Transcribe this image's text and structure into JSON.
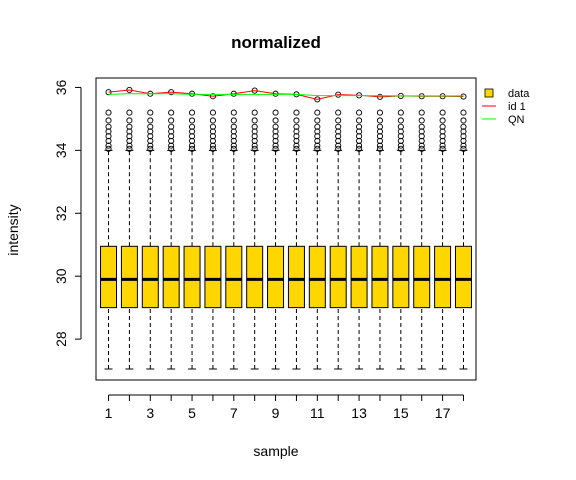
{
  "chart_data": {
    "type": "boxplot",
    "title": "normalized",
    "xlabel": "sample",
    "ylabel": "intensity",
    "ylim": [
      26.7,
      36.3
    ],
    "xlim": [
      0.4,
      18.6
    ],
    "y_ticks": [
      28,
      30,
      32,
      34,
      36
    ],
    "x_ticks": [
      1,
      3,
      5,
      7,
      9,
      11,
      13,
      15,
      17
    ],
    "grid": false,
    "legend_position": "top-right",
    "box_fill": "#FFD700",
    "samples": [
      1,
      2,
      3,
      4,
      5,
      6,
      7,
      8,
      9,
      10,
      11,
      12,
      13,
      14,
      15,
      16,
      17,
      18
    ],
    "boxes": {
      "min": 27.05,
      "q1": 29.0,
      "median": 29.9,
      "q3": 30.95,
      "whisker_high": 34.0,
      "outliers": [
        34.05,
        34.15,
        34.3,
        34.45,
        34.6,
        34.75,
        34.95,
        35.2
      ]
    },
    "series": [
      {
        "name": "data",
        "kind": "box",
        "color": "#FFD700"
      },
      {
        "name": "id 1",
        "kind": "line",
        "color": "#FF0000",
        "values": [
          35.85,
          35.92,
          35.8,
          35.85,
          35.8,
          35.72,
          35.8,
          35.9,
          35.8,
          35.78,
          35.62,
          35.77,
          35.75,
          35.7,
          35.73,
          35.72,
          35.72,
          35.71
        ]
      },
      {
        "name": "QN",
        "kind": "line",
        "color": "#00FF00",
        "values": [
          35.78,
          35.8,
          35.8,
          35.8,
          35.78,
          35.78,
          35.78,
          35.78,
          35.78,
          35.78,
          35.74,
          35.74,
          35.74,
          35.74,
          35.73,
          35.73,
          35.73,
          35.73
        ]
      }
    ],
    "max_points": [
      35.85,
      35.92,
      35.8,
      35.85,
      35.8,
      35.72,
      35.8,
      35.9,
      35.8,
      35.78,
      35.62,
      35.77,
      35.75,
      35.7,
      35.73,
      35.72,
      35.72,
      35.71
    ]
  }
}
